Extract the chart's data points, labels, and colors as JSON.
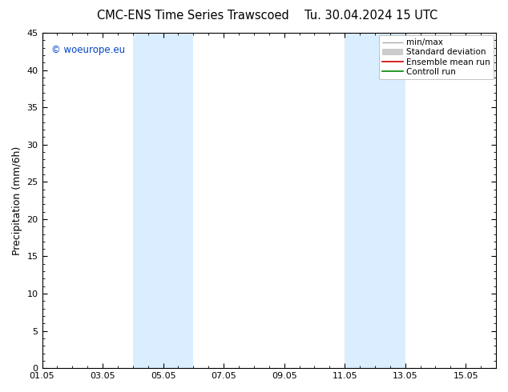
{
  "title": "CMC-ENS Time Series Trawscoed",
  "title_right": "Tu. 30.04.2024 15 UTC",
  "ylabel": "Precipitation (mm/6h)",
  "ylim": [
    0,
    45
  ],
  "yticks": [
    0,
    5,
    10,
    15,
    20,
    25,
    30,
    35,
    40,
    45
  ],
  "xlim": [
    0,
    15
  ],
  "xtick_labels": [
    "01.05",
    "03.05",
    "05.05",
    "07.05",
    "09.05",
    "11.05",
    "13.05",
    "15.05"
  ],
  "xtick_positions": [
    0,
    2,
    4,
    6,
    8,
    10,
    12,
    14
  ],
  "shade_bands": [
    {
      "x_start": 3.0,
      "x_end": 5.0,
      "color": "#daeeff"
    },
    {
      "x_start": 10.0,
      "x_end": 12.0,
      "color": "#daeeff"
    }
  ],
  "legend_entries": [
    "min/max",
    "Standard deviation",
    "Ensemble mean run",
    "Controll run"
  ],
  "minmax_color": "#aaaaaa",
  "std_color": "#cccccc",
  "ensemble_color": "#cc0000",
  "control_color": "#008800",
  "watermark": "woeurope.eu",
  "watermark_color": "#0044cc",
  "background_color": "#ffffff",
  "plot_bg_color": "#ffffff",
  "title_fontsize": 10.5,
  "ylabel_fontsize": 9,
  "tick_fontsize": 8,
  "legend_fontsize": 7.5
}
